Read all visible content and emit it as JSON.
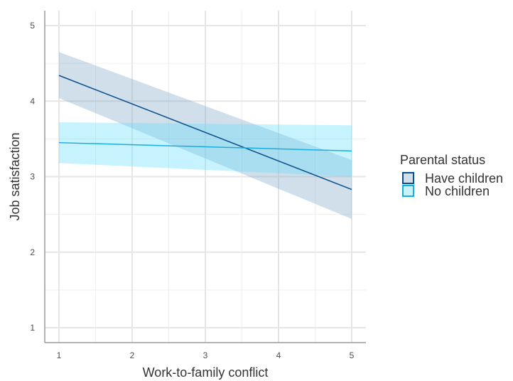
{
  "chart_data": {
    "type": "line",
    "xlabel": "Work-to-family conflict",
    "ylabel": "Job satisfaction",
    "xlim": [
      1,
      5
    ],
    "ylim": [
      1,
      5
    ],
    "x_ticks": [
      "1",
      "2",
      "3",
      "4",
      "5"
    ],
    "y_ticks": [
      "1",
      "2",
      "3",
      "4",
      "5"
    ],
    "grid": true,
    "legend": {
      "title": "Parental status",
      "placement": "right"
    },
    "series": [
      {
        "name": "Have children",
        "color": "#0b4f8a",
        "fill": "#7ba3c4",
        "x": [
          1,
          5
        ],
        "y": [
          4.34,
          2.83
        ],
        "ci_lower": [
          4.04,
          2.44
        ],
        "ci_upper": [
          4.65,
          3.22
        ]
      },
      {
        "name": "No children",
        "color": "#1aaee0",
        "fill": "#5fdcfc",
        "x": [
          1,
          5
        ],
        "y": [
          3.45,
          3.34
        ],
        "ci_lower": [
          3.18,
          3.0
        ],
        "ci_upper": [
          3.72,
          3.68
        ]
      }
    ]
  }
}
